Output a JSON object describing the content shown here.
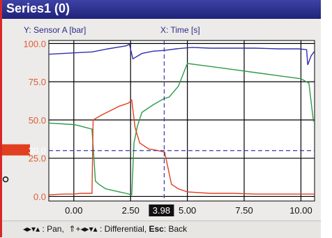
{
  "window": {
    "title": "Series1 (0)"
  },
  "axes_captions": {
    "y": "Y: Sensor A [bar]",
    "x": "X: Time [s]"
  },
  "cursor": {
    "x_readout": "3.98",
    "y_readout": "30.0"
  },
  "statusbar": {
    "pan_keys": "◂▸▾▴",
    "pan_label": ": Pan,",
    "diff_keys": "⇑+◂▸▾▴",
    "diff_label": ": Differential,",
    "esc_key": "Esc",
    "esc_label": ": Back"
  },
  "colors": {
    "title_bar": "#2a2d8c",
    "series_blue": "#2f2fb0",
    "series_green": "#2e9a4a",
    "series_red": "#e04020",
    "y_tick_text": "#e05a30",
    "cursor_line": "#3838a8"
  },
  "chart_data": {
    "type": "line",
    "xlabel": "X: Time [s]",
    "ylabel": "Y: Sensor A [bar]",
    "xlim": [
      -1.1,
      10.6
    ],
    "ylim": [
      -3,
      102
    ],
    "x_ticks": [
      "0.00",
      "2.50",
      "5.00",
      "7.50",
      "10.00"
    ],
    "x_tick_values": [
      0,
      2.5,
      5,
      7.5,
      10
    ],
    "y_ticks": [
      "100.0",
      "75.0",
      "50.0",
      "25.0",
      "0.0"
    ],
    "y_tick_values": [
      100,
      75,
      50,
      25,
      0
    ],
    "grid": true,
    "series": [
      {
        "color": "#2f2fb0",
        "x": [
          -1.1,
          0.8,
          1.5,
          2.3,
          2.45,
          2.6,
          3.0,
          3.5,
          4.0,
          4.5,
          5.2,
          6.0,
          7.0,
          8.0,
          9.0,
          9.9,
          10.25,
          10.3,
          10.45,
          10.6
        ],
        "y": [
          93,
          94.5,
          96.5,
          98.5,
          99.5,
          90,
          93.5,
          95,
          95.5,
          96.5,
          97.5,
          97,
          97,
          97,
          96.5,
          96.5,
          96,
          86,
          92,
          95
        ]
      },
      {
        "color": "#2e9a4a",
        "x": [
          -1.1,
          0.0,
          0.15,
          0.3,
          0.8,
          0.95,
          1.1,
          1.4,
          1.7,
          2.0,
          2.3,
          2.55,
          2.65,
          2.8,
          3.0,
          3.5,
          3.98,
          4.2,
          4.6,
          5.0,
          6.0,
          7.0,
          8.0,
          9.0,
          10.0,
          10.35,
          10.55
        ],
        "y": [
          48,
          47,
          46.5,
          46,
          44,
          10,
          8,
          5,
          4,
          3,
          2,
          1,
          35,
          46,
          55,
          60,
          64,
          65,
          72,
          87,
          85,
          83,
          81,
          79,
          77,
          74,
          49
        ]
      },
      {
        "color": "#e04020",
        "x": [
          -1.1,
          -0.5,
          0.0,
          0.3,
          0.8,
          0.85,
          1.2,
          1.6,
          2.0,
          2.4,
          2.55,
          2.7,
          2.9,
          3.3,
          3.7,
          4.0,
          4.1,
          4.3,
          4.6,
          5.0,
          6.0,
          7.0,
          8.0,
          9.0,
          10.0,
          10.6
        ],
        "y": [
          1,
          1.5,
          1.5,
          2,
          2,
          50,
          53,
          56,
          59,
          61,
          63,
          45,
          35,
          31,
          30,
          29,
          22,
          8,
          5,
          3,
          2,
          2,
          1.5,
          1.5,
          1.5,
          1.5
        ]
      }
    ],
    "cursor_x": 3.98,
    "cursor_y": 30
  }
}
